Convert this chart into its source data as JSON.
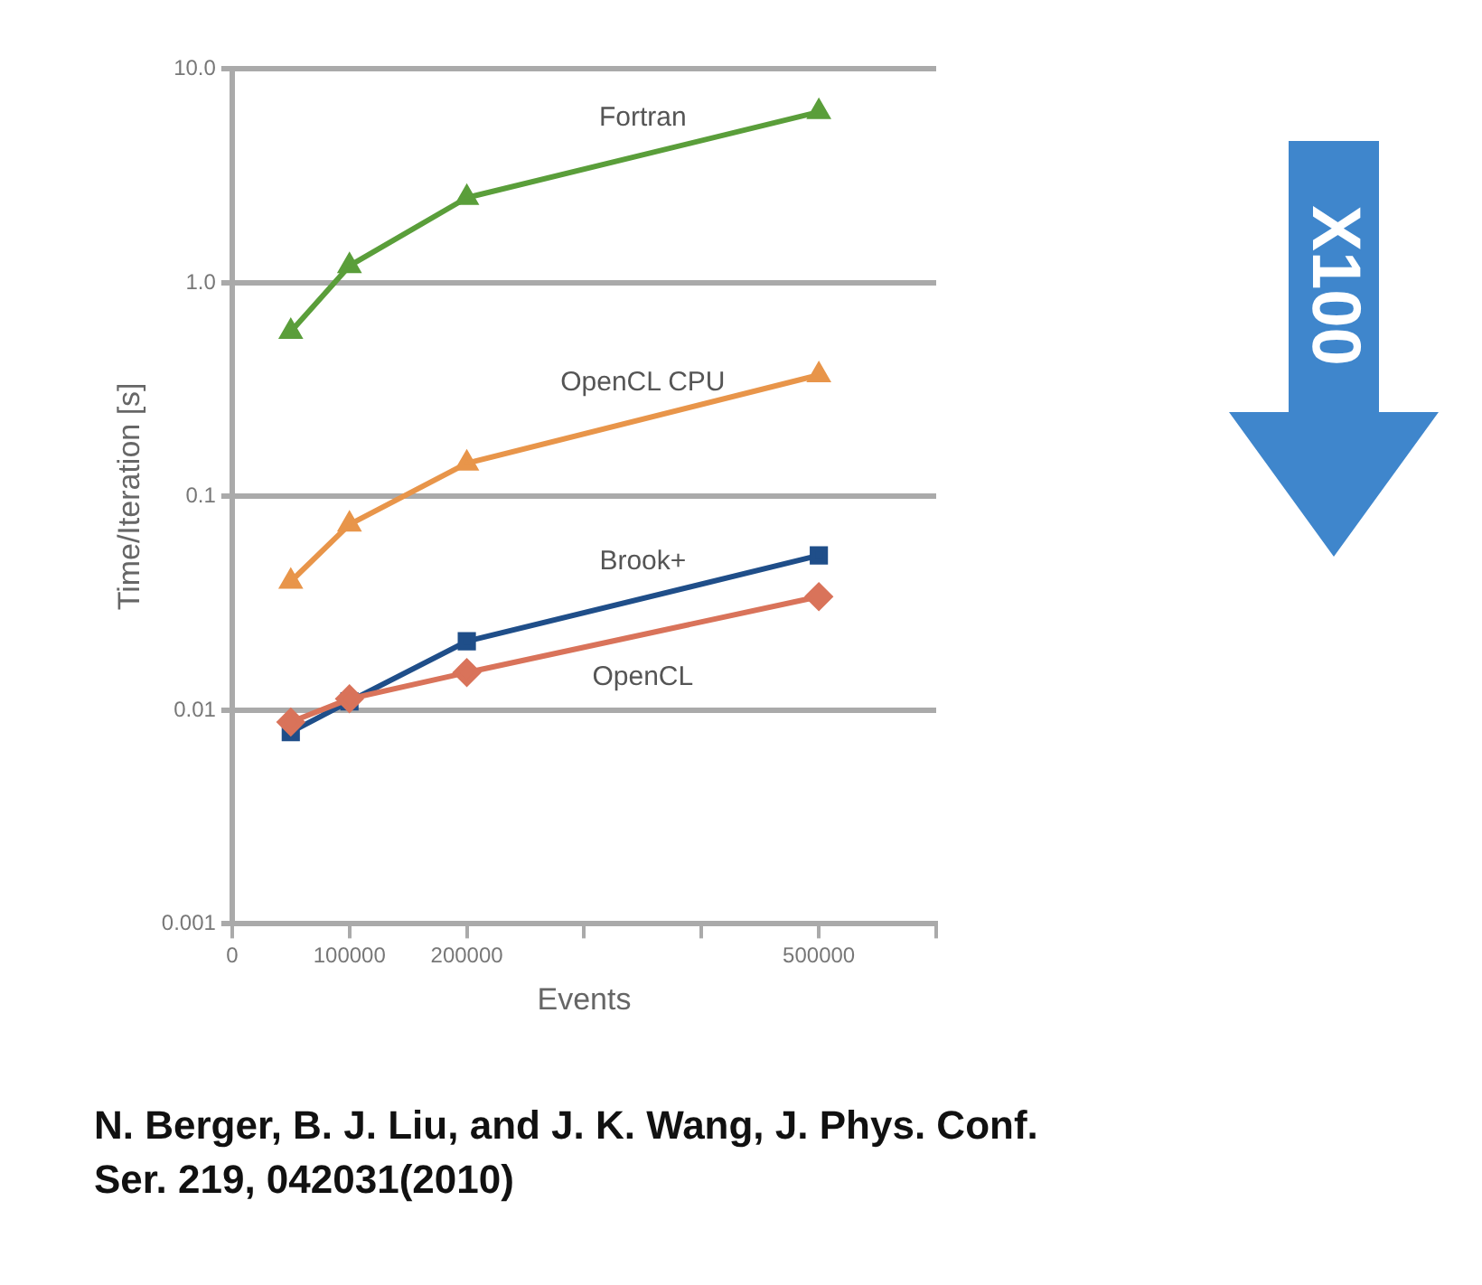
{
  "chart_data": {
    "type": "line",
    "xlabel": "Events",
    "ylabel": "Time/Iteration [s]",
    "log": "y",
    "grid": "y",
    "legend": false,
    "x": [
      50000,
      100000,
      200000,
      500000
    ],
    "xlim": [
      0,
      600000
    ],
    "xticks": [
      0,
      100000,
      200000,
      {
        "value": 300000,
        "label": null
      },
      {
        "value": 400000,
        "label": null
      },
      500000,
      {
        "value": 600000,
        "label": null
      }
    ],
    "ylim": [
      0.001,
      10
    ],
    "yticks": [
      {
        "value": 0.001,
        "label": "0.001"
      },
      {
        "value": 0.01,
        "label": "0.01"
      },
      {
        "value": 0.1,
        "label": "0.1"
      },
      {
        "value": 1,
        "label": "1.0"
      },
      {
        "value": 10,
        "label": "10.0"
      }
    ],
    "series": [
      {
        "name": "Fortran",
        "color": "#5a9e3a",
        "marker": "triangle",
        "values": [
          0.59,
          1.2,
          2.5,
          6.3
        ]
      },
      {
        "name": "OpenCL CPU",
        "color": "#e8954a",
        "marker": "triangle",
        "values": [
          0.04,
          0.074,
          0.143,
          0.37
        ]
      },
      {
        "name": "Brook+",
        "color": "#1f4e89",
        "marker": "square",
        "values": [
          0.0079,
          0.011,
          0.021,
          0.053
        ]
      },
      {
        "name": "OpenCL",
        "color": "#d9735a",
        "marker": "diamond",
        "values": [
          0.0088,
          0.0113,
          0.015,
          0.034
        ]
      }
    ],
    "annotations": [
      "X100",
      "N. Berger, B. J. Liu, and J. K. Wang, J. Phys. Conf. Ser. 219, 042031(2010)"
    ]
  }
}
